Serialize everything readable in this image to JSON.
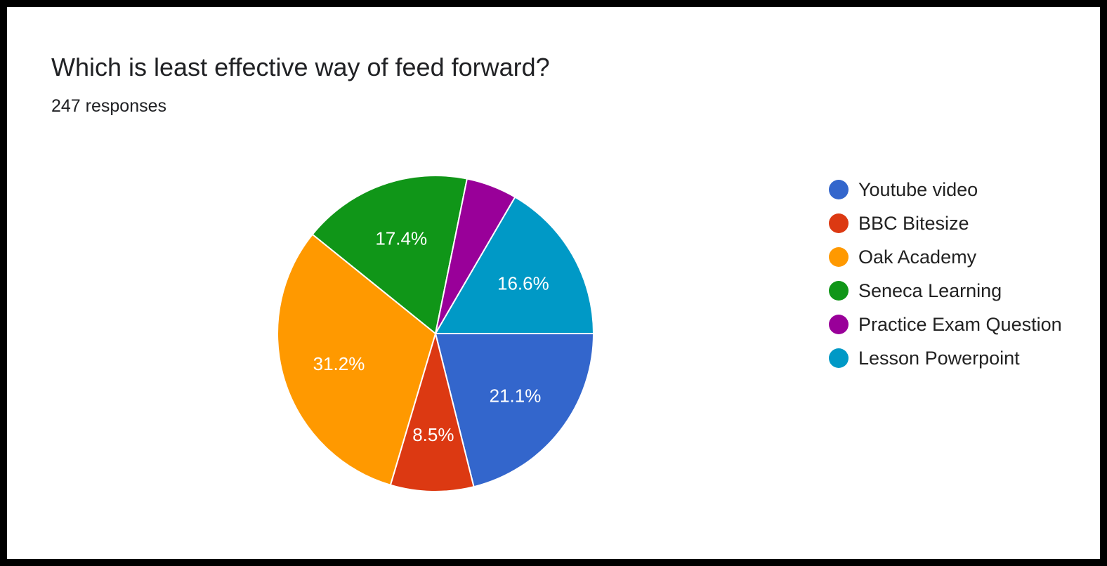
{
  "chart_data": {
    "type": "pie",
    "title": "Which is least effective way of feed forward?",
    "subtitle": "247 responses",
    "categories": [
      "Youtube video",
      "BBC Bitesize",
      "Oak Academy",
      "Seneca Learning",
      "Practice Exam Question",
      "Lesson Powerpoint"
    ],
    "values": [
      21.1,
      8.5,
      31.2,
      17.4,
      5.2,
      16.6
    ],
    "labels": [
      "21.1%",
      "8.5%",
      "31.2%",
      "17.4%",
      "",
      "16.6%"
    ],
    "colors": [
      "#3366cc",
      "#dc3912",
      "#ff9900",
      "#109618",
      "#990099",
      "#0099c6"
    ],
    "start": "3 o'clock",
    "direction": "clockwise",
    "legend_position": "right"
  }
}
